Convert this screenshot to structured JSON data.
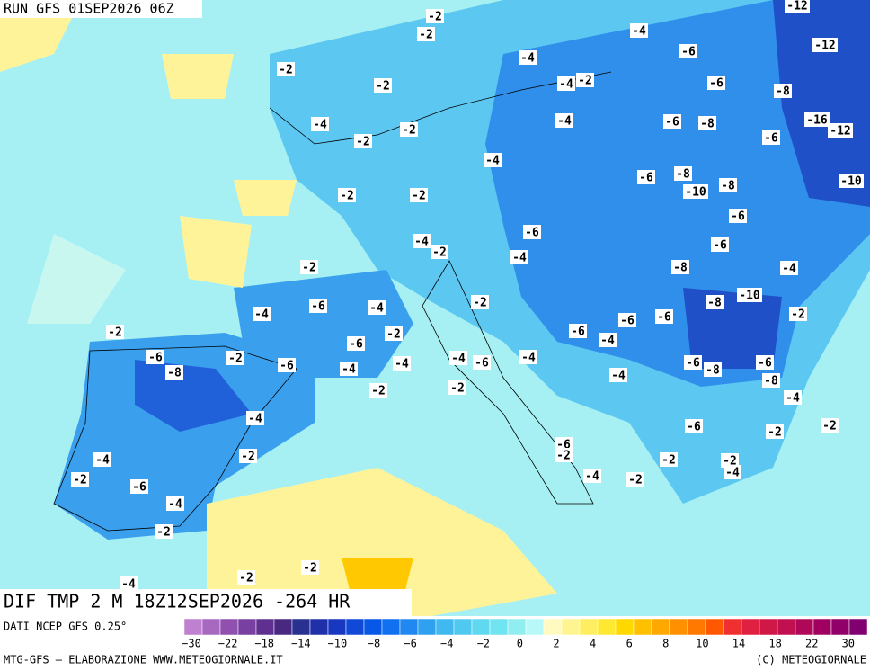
{
  "header": {
    "run": "RUN GFS 01SEP2026 06Z"
  },
  "footer": {
    "field": "DIF TMP 2 M 18Z12SEP2026 -264 HR",
    "source": "DATI NCEP GFS 0.25°",
    "credit": "MTG-GFS – ELABORAZIONE WWW.METEOGIORNALE.IT",
    "copyright": "(C) METEOGIORNALE"
  },
  "legend": {
    "colors": [
      "#c080d0",
      "#a868c0",
      "#9050b0",
      "#7840a0",
      "#603090",
      "#482880",
      "#283090",
      "#2030a8",
      "#1838c0",
      "#1048d8",
      "#0858e8",
      "#1070f0",
      "#2088f0",
      "#30a0f0",
      "#40b8f0",
      "#50c8f0",
      "#60d8f0",
      "#70e4f0",
      "#90eef0",
      "#b8f8f8",
      "#fffbc0",
      "#fff590",
      "#ffef60",
      "#ffe830",
      "#ffd800",
      "#ffc000",
      "#ffa800",
      "#ff9000",
      "#ff7800",
      "#ff5800",
      "#f03030",
      "#e02040",
      "#d01848",
      "#c01050",
      "#b00858",
      "#a00060",
      "#900068",
      "#800070"
    ],
    "labels": [
      "−30",
      "−22",
      "−18",
      "−14",
      "−10",
      "−8",
      "−6",
      "−4",
      "−2",
      "0",
      "2",
      "4",
      "6",
      "8",
      "10",
      "14",
      "18",
      "22",
      "30"
    ]
  },
  "map": {
    "labels": [
      "-12",
      "-2",
      "-2",
      "-4",
      "-4",
      "-6",
      "-12",
      "-2",
      "-2",
      "-4",
      "-2",
      "-6",
      "-8",
      "-4",
      "-4",
      "-6",
      "-8",
      "-16",
      "-12",
      "-2",
      "-2",
      "-6",
      "-4",
      "-6",
      "-8",
      "-10",
      "-8",
      "-10",
      "-2",
      "-2",
      "-6",
      "-6",
      "-4",
      "-2",
      "-4",
      "-6",
      "-2",
      "-8",
      "-4",
      "-10",
      "-8",
      "-2",
      "-6",
      "-4",
      "-4",
      "-2",
      "-6",
      "-6",
      "-2",
      "-6",
      "-4",
      "-2",
      "-6",
      "-6",
      "-2",
      "-6",
      "-4",
      "-4",
      "-4",
      "-6",
      "-4",
      "-6",
      "-8",
      "-6",
      "-8",
      "-8",
      "-4",
      "-2",
      "-2",
      "-4",
      "-4",
      "-6",
      "-2",
      "-2",
      "-2",
      "-4",
      "-6",
      "-2",
      "-2",
      "-2",
      "-4",
      "-2",
      "-6",
      "-4",
      "-2",
      "-4",
      "-2",
      "-2",
      "-4",
      "-2"
    ]
  }
}
